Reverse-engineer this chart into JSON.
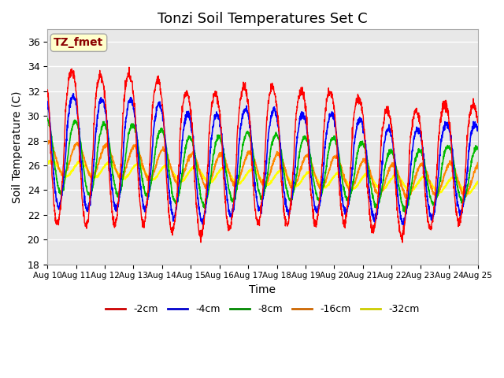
{
  "title": "Tonzi Soil Temperatures Set C",
  "xlabel": "Time",
  "ylabel": "Soil Temperature (C)",
  "annotation": "TZ_fmet",
  "ylim": [
    18,
    37
  ],
  "yticks": [
    18,
    20,
    22,
    24,
    26,
    28,
    30,
    32,
    34,
    36
  ],
  "xtick_labels": [
    "Aug 10",
    "Aug 11",
    "Aug 12",
    "Aug 13",
    "Aug 14",
    "Aug 15",
    "Aug 16",
    "Aug 17",
    "Aug 18",
    "Aug 19",
    "Aug 20",
    "Aug 21",
    "Aug 22",
    "Aug 23",
    "Aug 24",
    "Aug 25"
  ],
  "colors": {
    "-2cm": "#ff0000",
    "-4cm": "#0000ff",
    "-8cm": "#00bb00",
    "-16cm": "#ff8800",
    "-32cm": "#ffff00"
  },
  "legend_colors": {
    "-2cm": "#cc0000",
    "-4cm": "#0000cc",
    "-8cm": "#008800",
    "-16cm": "#cc6600",
    "-32cm": "#cccc00"
  },
  "legend_entries": [
    "-2cm",
    "-4cm",
    "-8cm",
    "-16cm",
    "-32cm"
  ],
  "plot_bg_color": "#e8e8e8",
  "title_fontsize": 13,
  "axis_label_fontsize": 10
}
